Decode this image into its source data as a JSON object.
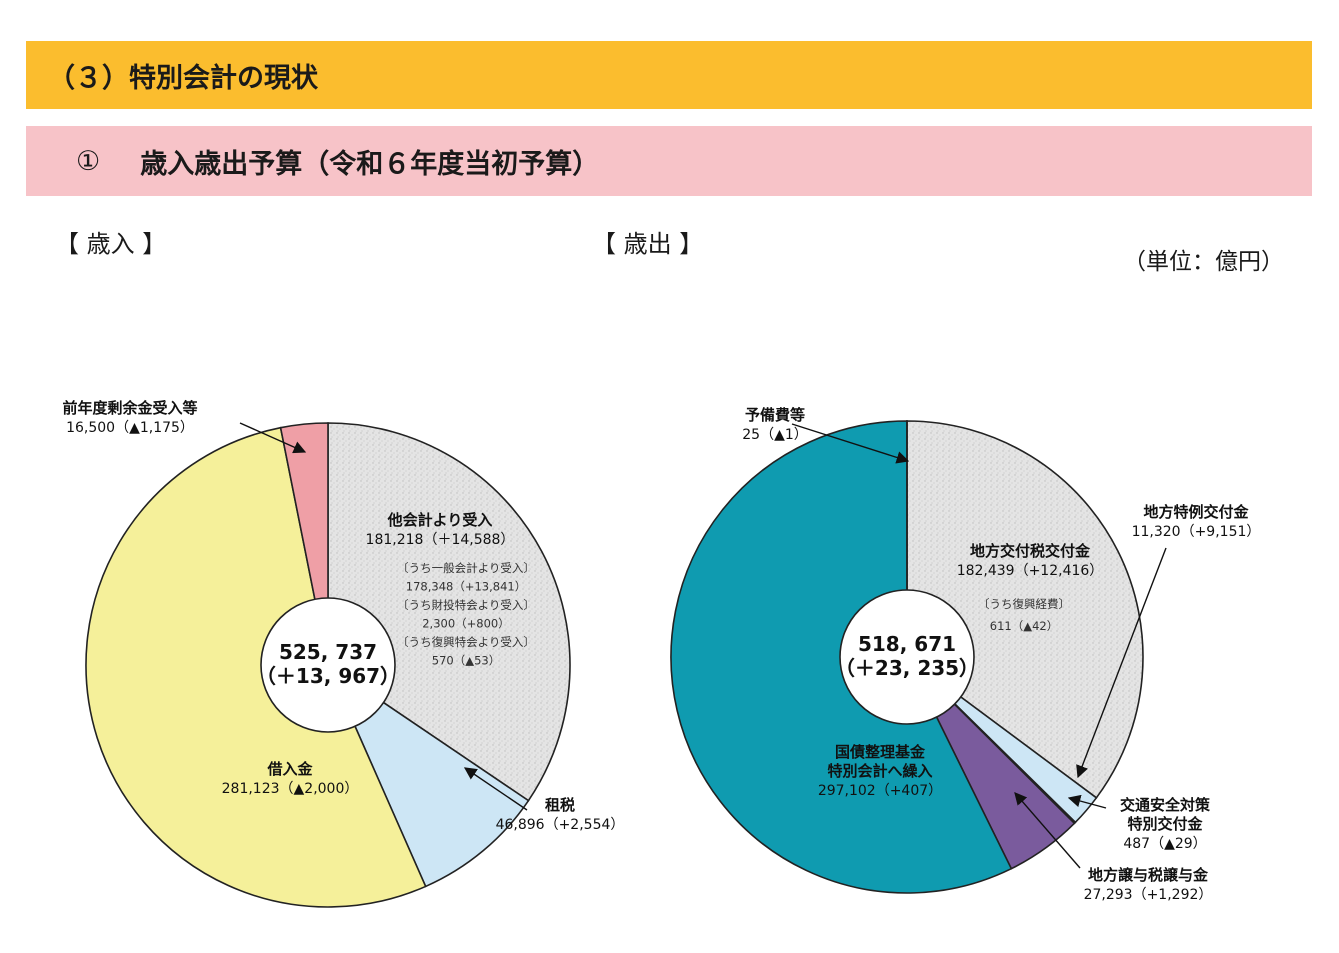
{
  "section_title": "（３）特別会計の現状",
  "subsection": {
    "number": "①",
    "title": "歳入歳出予算（令和６年度当初予算）"
  },
  "revenue_heading": "【 歳入 】",
  "expenditure_heading": "【 歳出 】",
  "unit": "（単位：億円）",
  "colors": {
    "section_bar": "#fbbd2e",
    "subsection_bar": "#f7c3c8",
    "speckle_gray": "#e4e4e4",
    "light_blue": "#cde6f5",
    "yellow": "#f5f09a",
    "pink": "#ef9fa6",
    "teal": "#0f9bb0",
    "purple": "#7a5b9d"
  },
  "chart_data": [
    {
      "type": "pie",
      "name": "歳入",
      "center_label": [
        "525, 737",
        "（＋13, 967）"
      ],
      "total": 525737,
      "slices": [
        {
          "key": "tak",
          "name": "他会計より受入",
          "value": 181218,
          "value_label": "181,218（＋14,588）",
          "color": "#e4e4e4",
          "notes": [
            "〔うち一般会計より受入〕",
            "178,348（+13,841）",
            "〔うち財投特会より受入〕",
            "2,300（+800）",
            "〔うち復興特会より受入〕",
            "570（▲53）"
          ]
        },
        {
          "key": "sozei",
          "name": "租税",
          "value": 46896,
          "value_label": "46,896（+2,554）",
          "color": "#cde6f5"
        },
        {
          "key": "shakunyu",
          "name": "借入金",
          "value": 281123,
          "value_label": "281,123（▲2,000）",
          "color": "#f5f09a"
        },
        {
          "key": "zennendo",
          "name": "前年度剰余金受入等",
          "value": 16500,
          "value_label": "16,500（▲1,175）",
          "color": "#ef9fa6"
        }
      ]
    },
    {
      "type": "pie",
      "name": "歳出",
      "center_label": [
        "518, 671",
        "（＋23, 235）"
      ],
      "total": 518671,
      "slices": [
        {
          "key": "chiho",
          "name": "地方交付税交付金",
          "value": 182439,
          "value_label": "182,439（+12,416）",
          "color": "#e4e4e4",
          "notes": [
            "〔うち復興経費〕",
            "611（▲42）"
          ]
        },
        {
          "key": "tokurei",
          "name": "地方特例交付金",
          "value": 11320,
          "value_label": "11,320（+9,151）",
          "color": "#cde6f5"
        },
        {
          "key": "kotsu",
          "name": "交通安全対策\n特別交付金",
          "value": 487,
          "value_label": "487（▲29）",
          "color": "#cde6f5"
        },
        {
          "key": "joyo",
          "name": "地方譲与税譲与金",
          "value": 27293,
          "value_label": "27,293（+1,292）",
          "color": "#7a5b9d"
        },
        {
          "key": "kokusai",
          "name": "国債整理基金\n特別会計へ繰入",
          "value": 297102,
          "value_label": "297,102（+407）",
          "color": "#0f9bb0"
        },
        {
          "key": "yobi",
          "name": "予備費等",
          "value": 25,
          "value_label": "25（▲1）",
          "color": "#0f9bb0"
        }
      ]
    }
  ]
}
